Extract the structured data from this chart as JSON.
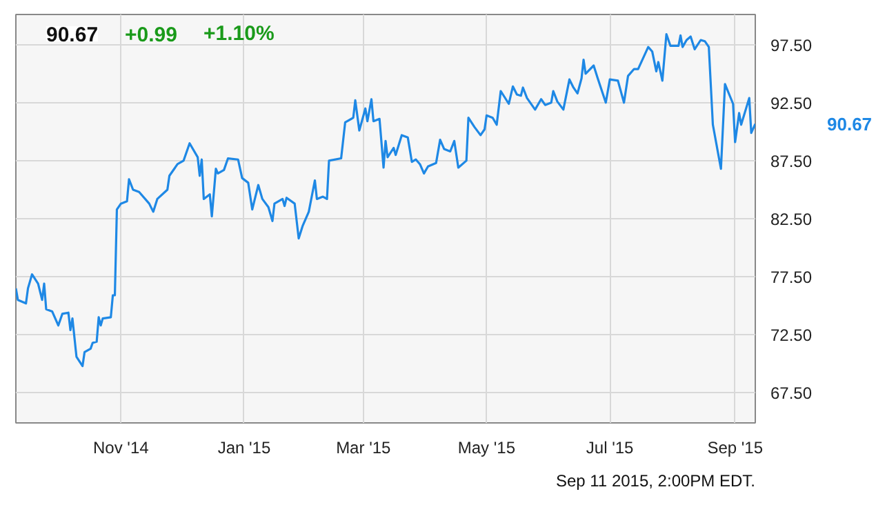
{
  "chart_data": {
    "type": "line",
    "x": [
      "2014-09-10",
      "2014-09-11",
      "2014-09-15",
      "2014-09-16",
      "2014-09-18",
      "2014-09-21",
      "2014-09-23",
      "2014-09-24",
      "2014-09-25",
      "2014-09-28",
      "2014-10-01",
      "2014-10-03",
      "2014-10-06",
      "2014-10-07",
      "2014-10-08",
      "2014-10-10",
      "2014-10-13",
      "2014-10-14",
      "2014-10-17",
      "2014-10-18",
      "2014-10-20",
      "2014-10-21",
      "2014-10-22",
      "2014-10-23",
      "2014-10-27",
      "2014-10-28",
      "2014-10-29",
      "2014-10-30",
      "2014-11-01",
      "2014-11-04",
      "2014-11-05",
      "2014-11-07",
      "2014-11-10",
      "2014-11-15",
      "2014-11-17",
      "2014-11-19",
      "2014-11-24",
      "2014-11-25",
      "2014-11-29",
      "2014-12-02",
      "2014-12-05",
      "2014-12-09",
      "2014-12-10",
      "2014-12-11",
      "2014-12-12",
      "2014-12-15",
      "2014-12-16",
      "2014-12-18",
      "2014-12-19",
      "2014-12-22",
      "2014-12-24",
      "2014-12-29",
      "2014-12-31",
      "2015-01-03",
      "2015-01-05",
      "2015-01-08",
      "2015-01-10",
      "2015-01-13",
      "2015-01-15",
      "2015-01-16",
      "2015-01-20",
      "2015-01-21",
      "2015-01-22",
      "2015-01-26",
      "2015-01-28",
      "2015-01-30",
      "2015-02-02",
      "2015-02-05",
      "2015-02-06",
      "2015-02-09",
      "2015-02-11",
      "2015-02-12",
      "2015-02-18",
      "2015-02-20",
      "2015-02-24",
      "2015-02-25",
      "2015-02-27",
      "2015-03-02",
      "2015-03-03",
      "2015-03-05",
      "2015-03-06",
      "2015-03-09",
      "2015-03-11",
      "2015-03-12",
      "2015-03-13",
      "2015-03-16",
      "2015-03-17",
      "2015-03-20",
      "2015-03-23",
      "2015-03-25",
      "2015-03-27",
      "2015-03-29",
      "2015-03-31",
      "2015-04-02",
      "2015-04-06",
      "2015-04-08",
      "2015-04-10",
      "2015-04-13",
      "2015-04-15",
      "2015-04-17",
      "2015-04-21",
      "2015-04-22",
      "2015-04-25",
      "2015-04-28",
      "2015-04-30",
      "2015-05-01",
      "2015-05-04",
      "2015-05-06",
      "2015-05-08",
      "2015-05-12",
      "2015-05-14",
      "2015-05-16",
      "2015-05-18",
      "2015-05-19",
      "2015-05-21",
      "2015-05-25",
      "2015-05-28",
      "2015-05-30",
      "2015-06-02",
      "2015-06-03",
      "2015-06-05",
      "2015-06-08",
      "2015-06-11",
      "2015-06-13",
      "2015-06-15",
      "2015-06-17",
      "2015-06-18",
      "2015-06-19",
      "2015-06-23",
      "2015-06-25",
      "2015-06-29",
      "2015-07-01",
      "2015-07-05",
      "2015-07-08",
      "2015-07-10",
      "2015-07-13",
      "2015-07-15",
      "2015-07-20",
      "2015-07-22",
      "2015-07-24",
      "2015-07-25",
      "2015-07-27",
      "2015-07-29",
      "2015-07-31",
      "2015-08-04",
      "2015-08-05",
      "2015-08-06",
      "2015-08-08",
      "2015-08-10",
      "2015-08-12",
      "2015-08-15",
      "2015-08-17",
      "2015-08-19",
      "2015-08-21",
      "2015-08-25",
      "2015-08-27",
      "2015-08-31",
      "2015-09-01",
      "2015-09-03",
      "2015-09-04",
      "2015-09-08",
      "2015-09-09",
      "2015-09-11"
    ],
    "series": [
      {
        "color": "#1e88e5",
        "values": [
          76.5,
          75.5,
          75.2,
          76.5,
          77.7,
          76.9,
          75.5,
          76.9,
          74.7,
          74.5,
          73.3,
          74.3,
          74.4,
          72.9,
          73.9,
          70.6,
          69.8,
          71.0,
          71.3,
          71.8,
          71.9,
          74.0,
          73.3,
          73.9,
          74.0,
          75.9,
          75.9,
          83.3,
          83.8,
          84.0,
          85.9,
          85.0,
          84.8,
          83.8,
          83.1,
          84.2,
          85.0,
          86.2,
          87.2,
          87.5,
          89.0,
          87.8,
          86.2,
          87.6,
          84.2,
          84.6,
          82.7,
          86.8,
          86.4,
          86.7,
          87.7,
          87.6,
          86.0,
          85.6,
          83.3,
          85.4,
          84.2,
          83.5,
          82.3,
          83.8,
          84.2,
          83.6,
          84.3,
          83.8,
          80.8,
          81.9,
          83.1,
          85.8,
          84.2,
          84.4,
          84.2,
          87.5,
          87.7,
          90.8,
          91.2,
          92.7,
          90.1,
          92.0,
          90.9,
          92.8,
          90.9,
          91.1,
          86.9,
          89.2,
          87.8,
          88.6,
          88.0,
          89.7,
          89.5,
          87.4,
          87.6,
          87.2,
          86.4,
          87.0,
          87.3,
          89.3,
          88.5,
          88.3,
          89.2,
          86.9,
          87.5,
          91.2,
          90.4,
          89.7,
          90.2,
          91.4,
          91.2,
          90.6,
          93.5,
          92.4,
          93.9,
          93.2,
          93.1,
          93.8,
          92.9,
          91.9,
          92.8,
          92.3,
          92.5,
          93.5,
          92.6,
          91.9,
          94.5,
          93.8,
          93.3,
          94.6,
          96.2,
          95.0,
          95.7,
          94.6,
          92.5,
          94.5,
          94.4,
          92.5,
          94.8,
          95.4,
          95.4,
          97.3,
          96.9,
          95.2,
          96.0,
          94.4,
          98.4,
          97.4,
          97.4,
          98.3,
          97.3,
          97.9,
          98.2,
          97.1,
          97.9,
          97.8,
          97.3,
          90.6,
          86.8,
          94.1,
          92.4,
          89.1,
          91.6,
          90.6,
          92.9,
          89.9,
          90.67
        ]
      }
    ],
    "xlim": [
      "2014-09-10",
      "2015-09-11"
    ],
    "xticks": [
      {
        "value": "2014-11-01",
        "label": "Nov '14"
      },
      {
        "value": "2015-01-01",
        "label": "Jan '15"
      },
      {
        "value": "2015-03-01",
        "label": "Mar '15"
      },
      {
        "value": "2015-05-01",
        "label": "May '15"
      },
      {
        "value": "2015-07-01",
        "label": "Jul '15"
      },
      {
        "value": "2015-09-01",
        "label": "Sep '15"
      }
    ],
    "ylim": [
      64.9,
      100.1
    ],
    "yticks": [
      {
        "value": 67.5,
        "label": "67.50"
      },
      {
        "value": 72.5,
        "label": "72.50"
      },
      {
        "value": 77.5,
        "label": "77.50"
      },
      {
        "value": 82.5,
        "label": "82.50"
      },
      {
        "value": 87.5,
        "label": "87.50"
      },
      {
        "value": 92.5,
        "label": "92.50"
      },
      {
        "value": 97.5,
        "label": "97.50"
      }
    ],
    "grid": true,
    "marker": "none",
    "line_style": "solid",
    "annotations": [
      "90.67",
      "+0.99",
      "+1.10%",
      "90.67",
      "Sep 11 2015, 2:00PM EDT."
    ]
  }
}
